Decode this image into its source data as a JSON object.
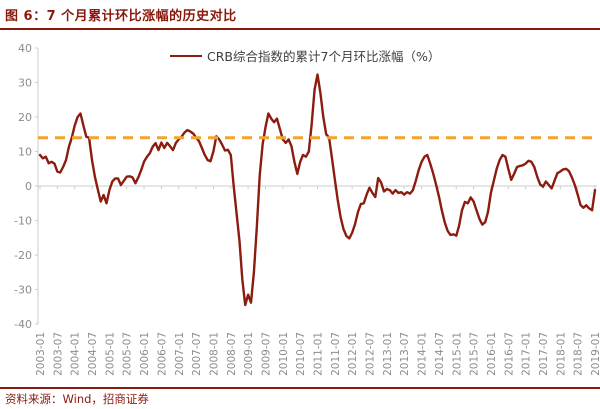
{
  "header": {
    "title": "图 6：7 个月累计环比涨幅的历史对比"
  },
  "footer": {
    "source": "资料来源：Wind，招商证券"
  },
  "colors": {
    "line": "#8C1B10",
    "maroon_text": "#8A190D",
    "reference": "#F2A42C",
    "axis": "#CCCCCC",
    "tick_label": "#8C8C8C",
    "legend_text": "#3F3F3F"
  },
  "chart_data": {
    "type": "line",
    "title": "图 6：7 个月累计环比涨幅的历史对比",
    "xlabel": "",
    "ylabel": "",
    "ylim": [
      -40,
      40
    ],
    "ytick_step": 10,
    "grid": false,
    "legend_position": "top-center",
    "x_frequency": "monthly",
    "x_start": "2003-01",
    "x_end": "2019-01",
    "x_tick_labels": [
      "2003-01",
      "2003-07",
      "2004-01",
      "2004-07",
      "2005-01",
      "2005-07",
      "2006-01",
      "2006-07",
      "2007-01",
      "2007-07",
      "2008-01",
      "2008-07",
      "2009-01",
      "2009-07",
      "2010-01",
      "2010-07",
      "2011-01",
      "2011-07",
      "2012-01",
      "2012-07",
      "2013-01",
      "2013-07",
      "2014-01",
      "2014-07",
      "2015-01",
      "2015-07",
      "2016-01",
      "2016-07",
      "2017-01",
      "2017-07",
      "2018-01",
      "2018-07",
      "2019-01"
    ],
    "reference_line": {
      "value": 14,
      "style": "dashed",
      "color": "#F2A42C"
    },
    "series": [
      {
        "name": "CRB综合指数的累计7个月环比涨幅（%）",
        "color": "#8C1B10",
        "values": [
          9.0,
          8.0,
          8.5,
          6.6,
          7.0,
          6.5,
          4.2,
          3.9,
          5.5,
          7.5,
          11.4,
          14.0,
          17.5,
          20.0,
          21.0,
          17.5,
          14.3,
          14.0,
          7.5,
          2.7,
          -1.0,
          -4.5,
          -2.6,
          -5.0,
          -1.2,
          1.3,
          2.2,
          2.2,
          0.3,
          1.5,
          2.7,
          2.8,
          2.5,
          0.8,
          2.5,
          4.6,
          7.1,
          8.5,
          9.5,
          11.4,
          12.4,
          10.4,
          12.6,
          11.0,
          12.5,
          11.5,
          10.4,
          12.5,
          13.5,
          14.3,
          15.5,
          16.2,
          15.8,
          15.2,
          14.0,
          13.0,
          11.0,
          9.0,
          7.5,
          7.2,
          10.0,
          14.4,
          13.5,
          12.0,
          10.3,
          10.5,
          9.0,
          0.0,
          -8.0,
          -16.0,
          -27.0,
          -34.5,
          -31.5,
          -33.8,
          -25.0,
          -12.0,
          3.0,
          12.0,
          17.0,
          21.0,
          19.5,
          18.5,
          19.5,
          16.5,
          13.5,
          12.5,
          13.5,
          11.5,
          7.0,
          3.5,
          7.0,
          9.0,
          8.5,
          10.0,
          18.0,
          28.0,
          32.3,
          27.0,
          20.0,
          15.0,
          14.0,
          8.0,
          2.0,
          -4.0,
          -9.0,
          -12.5,
          -14.5,
          -15.2,
          -13.5,
          -11.0,
          -7.5,
          -5.2,
          -5.0,
          -2.5,
          -0.5,
          -2.0,
          -3.2,
          2.3,
          1.0,
          -1.6,
          -0.9,
          -1.2,
          -2.2,
          -1.2,
          -2.0,
          -1.8,
          -2.5,
          -1.8,
          -2.2,
          -1.2,
          1.5,
          4.6,
          7.0,
          8.5,
          9.0,
          6.5,
          3.7,
          0.5,
          -3.0,
          -7.0,
          -10.5,
          -13.0,
          -14.2,
          -14.0,
          -14.4,
          -11.5,
          -7.0,
          -4.6,
          -5.0,
          -3.3,
          -4.5,
          -7.0,
          -9.5,
          -11.2,
          -10.5,
          -7.5,
          -2.0,
          1.5,
          5.0,
          7.5,
          9.0,
          8.5,
          5.0,
          1.8,
          3.5,
          5.5,
          5.8,
          6.0,
          6.5,
          7.3,
          7.0,
          5.5,
          2.7,
          0.5,
          -0.2,
          1.3,
          0.3,
          -0.7,
          1.5,
          3.7,
          4.2,
          4.8,
          5.0,
          4.3,
          2.5,
          0.3,
          -2.5,
          -5.5,
          -6.3,
          -5.6,
          -6.5,
          -7.0,
          -1.2
        ]
      }
    ]
  }
}
